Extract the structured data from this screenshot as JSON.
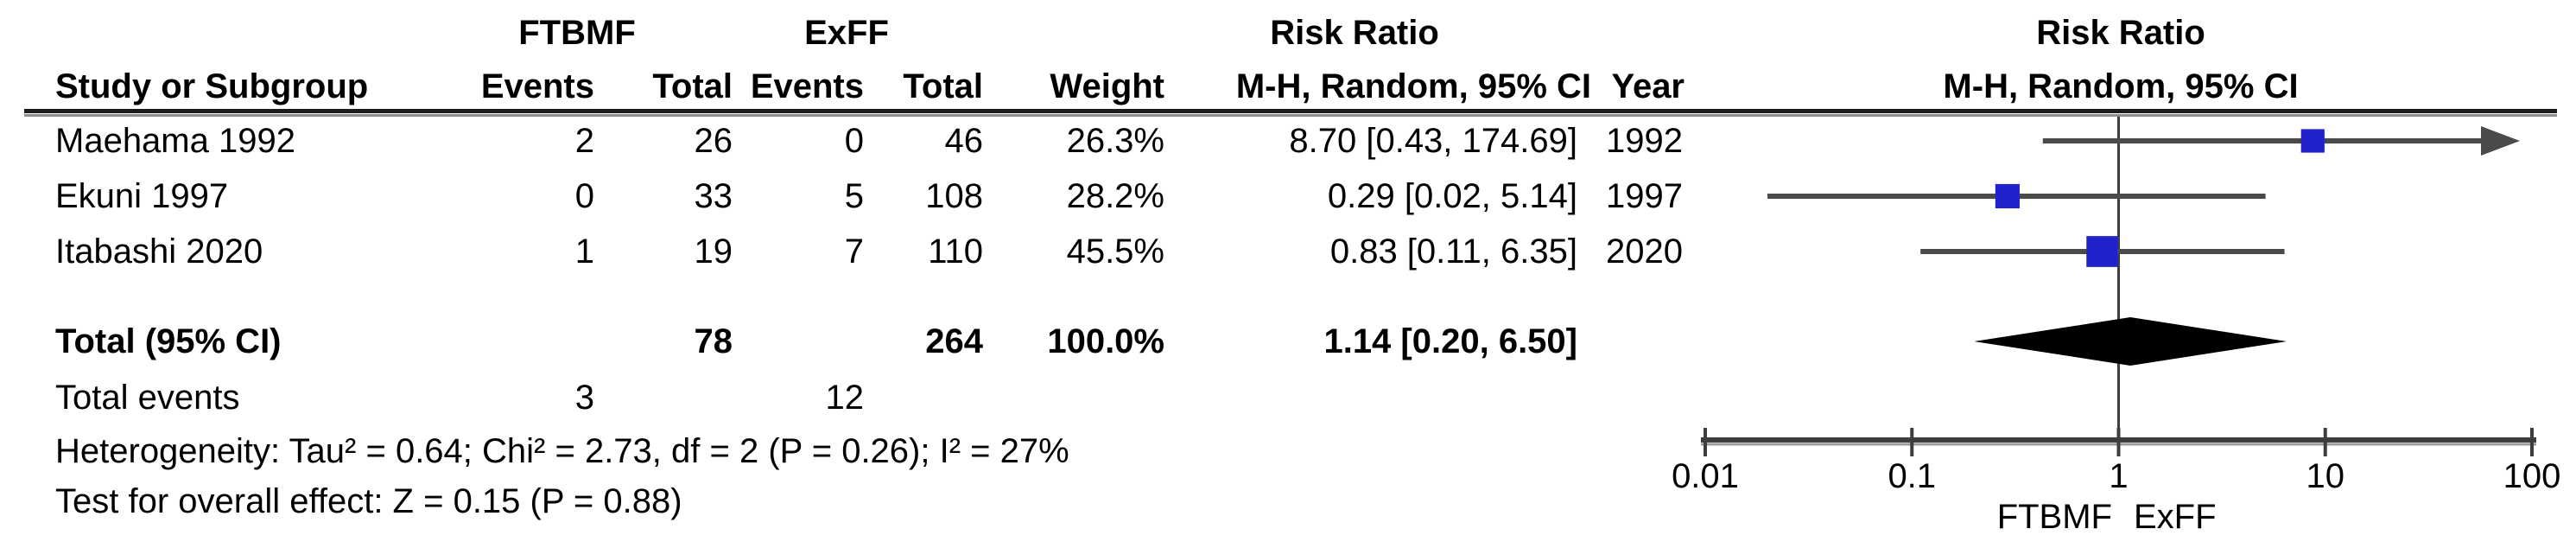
{
  "table": {
    "group1_label": "FTBMF",
    "group2_label": "ExFF",
    "col_study": "Study or Subgroup",
    "col_events": "Events",
    "col_total": "Total",
    "col_weight": "Weight",
    "col_rr_line1": "Risk Ratio",
    "col_rr_line2": "M-H, Random, 95% CI",
    "col_year": "Year",
    "studies": [
      {
        "name": "Maehama 1992",
        "events1": "2",
        "total1": "26",
        "events2": "0",
        "total2": "46",
        "weight": "26.3%",
        "rr_ci": "8.70 [0.43, 174.69]",
        "year": "1992"
      },
      {
        "name": "Ekuni 1997",
        "events1": "0",
        "total1": "33",
        "events2": "5",
        "total2": "108",
        "weight": "28.2%",
        "rr_ci": "0.29 [0.02, 5.14]",
        "year": "1997"
      },
      {
        "name": "Itabashi 2020",
        "events1": "1",
        "total1": "19",
        "events2": "7",
        "total2": "110",
        "weight": "45.5%",
        "rr_ci": "0.83 [0.11, 6.35]",
        "year": "2020"
      }
    ],
    "total_row": {
      "label": "Total (95% CI)",
      "total1": "78",
      "total2": "264",
      "weight": "100.0%",
      "rr_ci": "1.14 [0.20, 6.50]"
    },
    "total_events": {
      "label": "Total events",
      "events1": "3",
      "events2": "12"
    },
    "heterogeneity": "Heterogeneity: Tau² = 0.64; Chi² = 2.73, df = 2 (P = 0.26); I² = 27%",
    "overall_effect": "Test for overall effect: Z = 0.15 (P = 0.88)"
  },
  "plot_header": {
    "line1": "Risk Ratio",
    "line2": "M-H, Random, 95% CI"
  },
  "chart_data": {
    "type": "forest",
    "effect_measure": "Risk Ratio",
    "method": "M-H, Random, 95% CI",
    "x_scale": "log10",
    "axis": {
      "min": 0.01,
      "max": 100,
      "null_value": 1,
      "ticks": [
        "0.01",
        "0.1",
        "1",
        "10",
        "100"
      ]
    },
    "favours_left": "FTBMF",
    "favours_right": "ExFF",
    "studies": [
      {
        "label": "Maehama 1992",
        "year": 1992,
        "rr": 8.7,
        "ci_low": 0.43,
        "ci_high": 174.69,
        "weight_pct": 26.3
      },
      {
        "label": "Ekuni 1997",
        "year": 1997,
        "rr": 0.29,
        "ci_low": 0.02,
        "ci_high": 5.14,
        "weight_pct": 28.2
      },
      {
        "label": "Itabashi 2020",
        "year": 2020,
        "rr": 0.83,
        "ci_low": 0.11,
        "ci_high": 6.35,
        "weight_pct": 45.5
      }
    ],
    "total": {
      "label": "Total (95% CI)",
      "rr": 1.14,
      "ci_low": 0.2,
      "ci_high": 6.5
    },
    "colors": {
      "square": "#2222CC",
      "diamond": "#000000",
      "ci_line": "#4a4a4a",
      "axis": "#3d3d3d"
    }
  }
}
